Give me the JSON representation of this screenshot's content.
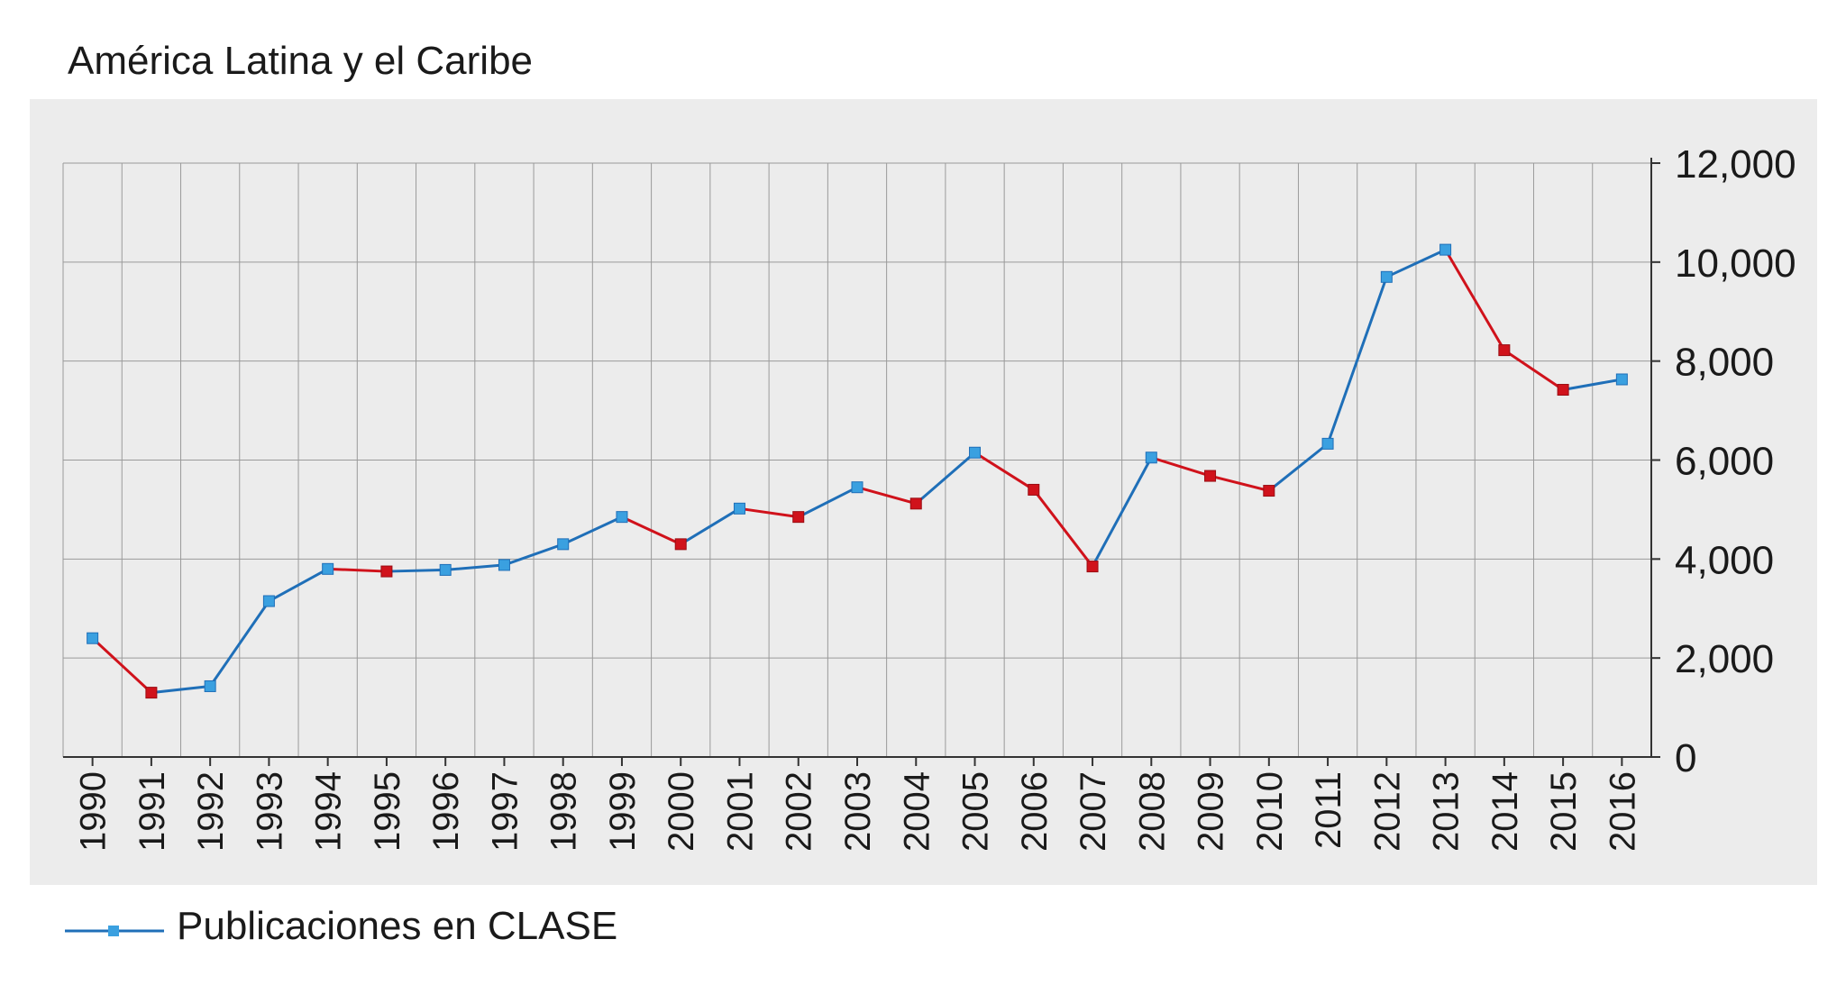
{
  "chart_data": {
    "type": "line",
    "title": "América Latina y el Caribe",
    "xlabel": "",
    "ylabel": "",
    "x": [
      "1990",
      "1991",
      "1992",
      "1993",
      "1994",
      "1995",
      "1996",
      "1997",
      "1998",
      "1999",
      "2000",
      "2001",
      "2002",
      "2003",
      "2004",
      "2005",
      "2006",
      "2007",
      "2008",
      "2009",
      "2010",
      "2011",
      "2012",
      "2013",
      "2014",
      "2015",
      "2016"
    ],
    "series": [
      {
        "name": "Publicaciones en CLASE",
        "values": [
          2400,
          1300,
          1430,
          3150,
          3800,
          3750,
          3780,
          3880,
          4300,
          4850,
          4300,
          5020,
          4850,
          5450,
          5120,
          6150,
          5400,
          3850,
          6050,
          5680,
          5380,
          6330,
          9700,
          10250,
          8220,
          7420,
          7630
        ]
      }
    ],
    "ylim": [
      0,
      12000
    ],
    "yticks": [
      "0",
      "2,000",
      "4,000",
      "6,000",
      "8,000",
      "10,000",
      "12,000"
    ],
    "ytick_values": [
      0,
      2000,
      4000,
      6000,
      8000,
      10000,
      12000
    ],
    "y_axis_side": "right",
    "grid": true,
    "legend_position": "bottom-left",
    "colors": {
      "increase": "#1f6fb8",
      "decrease": "#d0121b",
      "marker": "#3aa0e0",
      "marker_decrease": "#d0121b",
      "plot_background": "#ececec"
    }
  }
}
